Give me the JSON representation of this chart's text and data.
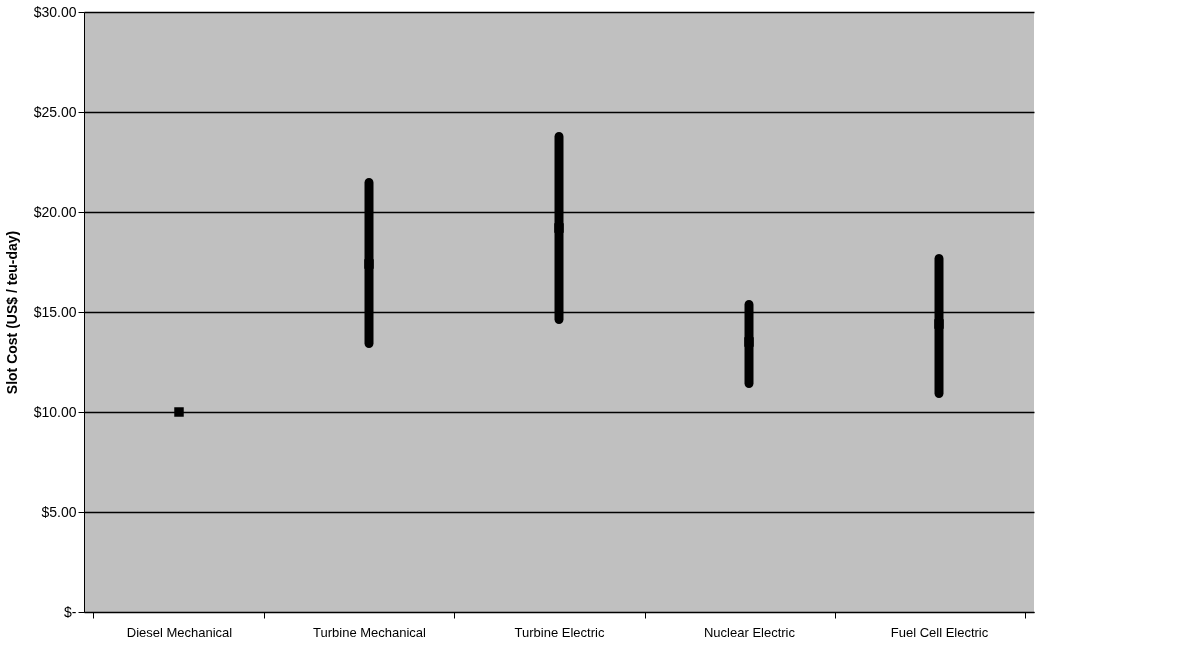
{
  "chart_data": {
    "type": "scatter",
    "ylabel": "Slot Cost (US$ / teu-day)",
    "categories": [
      "Diesel Mechanical",
      "Turbine Mechanical",
      "Turbine Electric",
      "Nuclear Electric",
      "Fuel Cell Electric"
    ],
    "series": [
      {
        "type": "bar",
        "color": "#000000",
        "base": [
          null,
          13.2,
          14.4,
          11.2,
          10.7
        ],
        "values": [
          null,
          8.5,
          9.6,
          4.4,
          7.2
        ]
      },
      {
        "color": "#000000",
        "values": [
          10.0,
          17.4,
          19.2,
          13.5,
          14.4
        ]
      }
    ],
    "ylim": [
      0,
      30
    ],
    "yticks": [
      {
        "value": 0,
        "label": "$-"
      },
      {
        "value": 5,
        "label": "$5.00"
      },
      {
        "value": 10,
        "label": "$10.00"
      },
      {
        "value": 15,
        "label": "$15.00"
      },
      {
        "value": 20,
        "label": "$20.00"
      },
      {
        "value": 25,
        "label": "$25.00"
      },
      {
        "value": 30,
        "label": "$30.00"
      }
    ],
    "grid": "y",
    "marker": "square"
  }
}
